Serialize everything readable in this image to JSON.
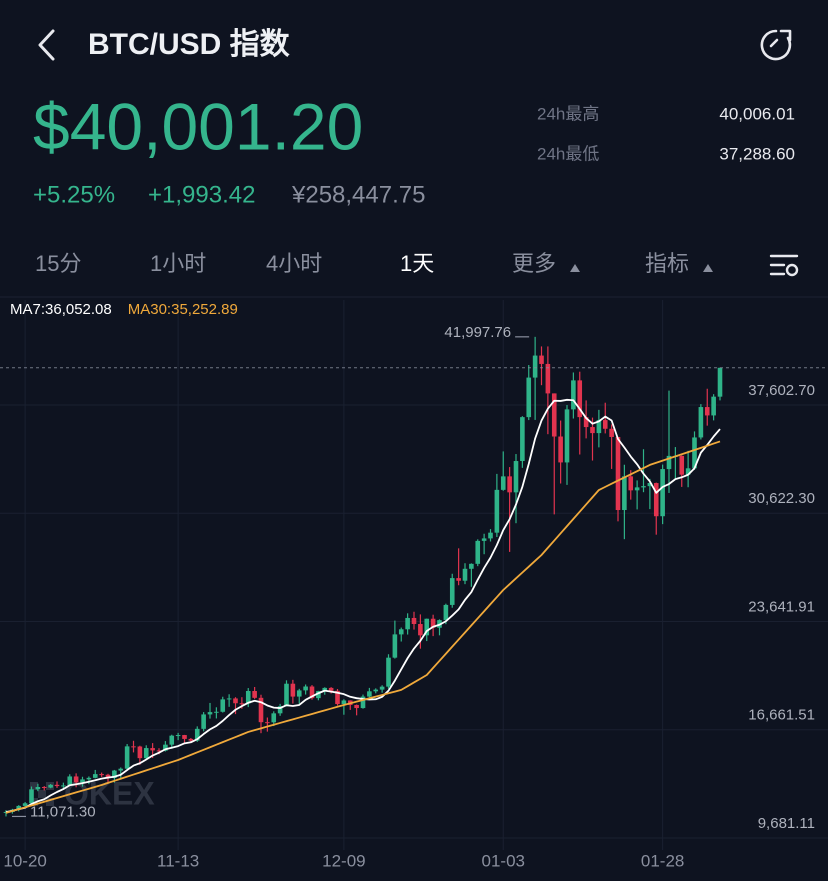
{
  "header": {
    "title": "BTC/USD 指数"
  },
  "ticker": {
    "price": "$40,001.20",
    "change_pct": "+5.25%",
    "change": "+1,993.42",
    "cny": "¥258,447.75",
    "high_label": "24h最高",
    "high": "40,006.01",
    "low_label": "24h最低",
    "low": "37,288.60"
  },
  "tabs": [
    "15分",
    "1小时",
    "4小时",
    "1天",
    "更多",
    "指标"
  ],
  "chart_data": {
    "type": "candlestick",
    "watermark": "OKEX",
    "up_color": "#2fb489",
    "down_color": "#e2344f",
    "grid": true,
    "current_price_line": true,
    "ylim": [
      8907,
      44373
    ],
    "yticks": [
      {
        "value": 9681.11,
        "label": "9,681.11"
      },
      {
        "value": 16661.51,
        "label": "16,661.51"
      },
      {
        "value": 23641.91,
        "label": "23,641.91"
      },
      {
        "value": 30622.3,
        "label": "30,622.30"
      },
      {
        "value": 37602.7,
        "label": "37,602.70"
      }
    ],
    "annotations": [
      {
        "value": 41997.76,
        "label": "41,997.76"
      },
      {
        "value": 11071.3,
        "label": "11,071.30"
      }
    ],
    "categories": [
      null,
      null,
      null,
      "10-20",
      null,
      null,
      null,
      null,
      null,
      null,
      null,
      null,
      null,
      null,
      null,
      null,
      null,
      null,
      null,
      null,
      null,
      null,
      null,
      null,
      null,
      null,
      null,
      "11-13",
      null,
      null,
      null,
      null,
      null,
      null,
      null,
      null,
      null,
      null,
      null,
      null,
      null,
      null,
      null,
      null,
      null,
      null,
      null,
      null,
      null,
      null,
      null,
      null,
      null,
      "12-09",
      null,
      null,
      null,
      null,
      null,
      null,
      null,
      null,
      null,
      null,
      null,
      null,
      null,
      null,
      null,
      null,
      null,
      null,
      null,
      null,
      null,
      null,
      null,
      null,
      "01-03",
      null,
      null,
      null,
      null,
      null,
      null,
      null,
      null,
      null,
      null,
      null,
      null,
      null,
      null,
      null,
      null,
      null,
      null,
      null,
      null,
      null,
      null,
      null,
      null,
      "01-28",
      null,
      null,
      null,
      null,
      null,
      null,
      null,
      null,
      null
    ],
    "ohlc": [
      [
        11300,
        11480,
        11071.3,
        11360
      ],
      [
        11360,
        11560,
        11250,
        11500
      ],
      [
        11500,
        11800,
        11400,
        11750
      ],
      [
        11750,
        12000,
        11680,
        11920
      ],
      [
        11920,
        13000,
        11880,
        12820
      ],
      [
        12820,
        13180,
        12700,
        12970
      ],
      [
        12970,
        13030,
        12750,
        12930
      ],
      [
        12930,
        13160,
        12890,
        13110
      ],
      [
        13110,
        13330,
        12910,
        13030
      ],
      [
        13030,
        13250,
        12800,
        13070
      ],
      [
        13070,
        13790,
        13060,
        13650
      ],
      [
        13650,
        13850,
        12950,
        13270
      ],
      [
        13270,
        13630,
        12990,
        13460
      ],
      [
        13460,
        13650,
        13150,
        13560
      ],
      [
        13560,
        14070,
        13530,
        13800
      ],
      [
        13800,
        13900,
        13620,
        13760
      ],
      [
        13760,
        13820,
        13290,
        13550
      ],
      [
        13550,
        14070,
        13250,
        14030
      ],
      [
        14030,
        14230,
        13530,
        14150
      ],
      [
        14150,
        15740,
        14100,
        15590
      ],
      [
        15590,
        15950,
        15200,
        15580
      ],
      [
        15580,
        15630,
        14400,
        14830
      ],
      [
        14830,
        15660,
        14720,
        15480
      ],
      [
        15480,
        15800,
        14840,
        15330
      ],
      [
        15330,
        15470,
        15080,
        15310
      ],
      [
        15310,
        15930,
        15260,
        15700
      ],
      [
        15700,
        16340,
        15440,
        16280
      ],
      [
        16280,
        16460,
        15990,
        16320
      ],
      [
        16320,
        16330,
        15770,
        16070
      ],
      [
        16070,
        16130,
        15850,
        15960
      ],
      [
        15960,
        16880,
        15880,
        16720
      ],
      [
        16720,
        17800,
        16560,
        17650
      ],
      [
        17650,
        18390,
        17380,
        17800
      ],
      [
        17800,
        18110,
        17390,
        17820
      ],
      [
        17820,
        18790,
        17770,
        18620
      ],
      [
        18620,
        18950,
        18140,
        18680
      ],
      [
        18680,
        18760,
        17670,
        18370
      ],
      [
        18370,
        18760,
        18020,
        18360
      ],
      [
        18360,
        19350,
        18120,
        19160
      ],
      [
        19160,
        19420,
        18650,
        18720
      ],
      [
        18720,
        18920,
        16440,
        17150
      ],
      [
        17150,
        17450,
        16540,
        17140
      ],
      [
        17140,
        17850,
        16900,
        17720
      ],
      [
        17720,
        18330,
        17560,
        18180
      ],
      [
        18180,
        19850,
        18180,
        19630
      ],
      [
        19630,
        19880,
        18350,
        18800
      ],
      [
        18800,
        19300,
        18340,
        19200
      ],
      [
        19200,
        19580,
        18930,
        19450
      ],
      [
        19450,
        19540,
        18600,
        18700
      ],
      [
        18700,
        19170,
        18560,
        19150
      ],
      [
        19150,
        19400,
        18920,
        19360
      ],
      [
        19360,
        19410,
        19000,
        19170
      ],
      [
        19170,
        19290,
        18220,
        18320
      ],
      [
        18320,
        18630,
        17630,
        18550
      ],
      [
        18550,
        18560,
        17940,
        18260
      ],
      [
        18260,
        18290,
        17590,
        18060
      ],
      [
        18060,
        18930,
        18020,
        18800
      ],
      [
        18800,
        19360,
        18750,
        19140
      ],
      [
        19140,
        19330,
        19010,
        19250
      ],
      [
        19250,
        19530,
        19050,
        19440
      ],
      [
        19440,
        21530,
        19300,
        21310
      ],
      [
        21310,
        23700,
        21250,
        22810
      ],
      [
        22810,
        23250,
        22350,
        23140
      ],
      [
        23140,
        24170,
        22800,
        23870
      ],
      [
        23870,
        24270,
        23120,
        23480
      ],
      [
        23480,
        24100,
        21890,
        22750
      ],
      [
        22750,
        23830,
        22380,
        23820
      ],
      [
        23820,
        24080,
        22700,
        23240
      ],
      [
        23240,
        23780,
        22750,
        23730
      ],
      [
        23730,
        24790,
        23470,
        24710
      ],
      [
        24710,
        26720,
        24530,
        26440
      ],
      [
        26440,
        28360,
        25980,
        26270
      ],
      [
        26270,
        27400,
        26050,
        27040
      ],
      [
        27040,
        27390,
        25880,
        27360
      ],
      [
        27360,
        28940,
        27210,
        28840
      ],
      [
        28840,
        29300,
        27980,
        29000
      ],
      [
        29000,
        29600,
        28800,
        29370
      ],
      [
        29370,
        33160,
        29090,
        32130
      ],
      [
        32130,
        34610,
        32070,
        33000
      ],
      [
        33000,
        33600,
        28130,
        31970
      ],
      [
        31970,
        34440,
        29980,
        33990
      ],
      [
        33990,
        36880,
        33550,
        36820
      ],
      [
        36820,
        40180,
        36630,
        39370
      ],
      [
        39370,
        41997.76,
        36640,
        40790
      ],
      [
        40790,
        41380,
        38880,
        40250
      ],
      [
        40250,
        41380,
        35720,
        38350
      ],
      [
        38350,
        38350,
        30550,
        35570
      ],
      [
        35570,
        36600,
        32540,
        33900
      ],
      [
        33900,
        37600,
        32450,
        37320
      ],
      [
        37320,
        39700,
        36730,
        39190
      ],
      [
        39190,
        39750,
        34410,
        36820
      ],
      [
        36820,
        37900,
        35450,
        36180
      ],
      [
        36180,
        36790,
        34020,
        35790
      ],
      [
        35790,
        37290,
        34870,
        36630
      ],
      [
        36630,
        37750,
        35770,
        36070
      ],
      [
        36070,
        36350,
        33480,
        35540
      ],
      [
        35540,
        35550,
        30100,
        30830
      ],
      [
        30830,
        33750,
        28950,
        33000
      ],
      [
        33000,
        33400,
        31500,
        32100
      ],
      [
        32100,
        32740,
        30870,
        32290
      ],
      [
        32290,
        34750,
        31980,
        32370
      ],
      [
        32370,
        32840,
        30890,
        32570
      ],
      [
        32570,
        32600,
        29240,
        30430
      ],
      [
        30430,
        33760,
        29920,
        33470
      ],
      [
        33470,
        38530,
        31930,
        34320
      ],
      [
        34320,
        34890,
        32860,
        34320
      ],
      [
        34320,
        34350,
        32320,
        33110
      ],
      [
        33110,
        34650,
        32300,
        33520
      ],
      [
        33520,
        35900,
        33420,
        35510
      ],
      [
        35510,
        37660,
        35380,
        37470
      ],
      [
        37470,
        38650,
        36270,
        36930
      ],
      [
        36930,
        38300,
        36610,
        38140
      ],
      [
        38140,
        40006.01,
        37900,
        40001.2
      ]
    ],
    "series": [
      {
        "name": "MA7:36,052.08",
        "color": "#ffffff",
        "values": [
          11360,
          11430,
          11540,
          11630,
          11870,
          12050,
          12180,
          12429,
          12647,
          12836,
          13083,
          13147,
          13217,
          13307,
          13406,
          13510,
          13579,
          13633,
          13759,
          14063,
          14351,
          14499,
          14744,
          14999,
          15181,
          15403,
          15501,
          15607,
          15784,
          15853,
          16051,
          16386,
          16686,
          16906,
          17234,
          17607,
          17951,
          18186,
          18401,
          18533,
          18437,
          18226,
          18089,
          18061,
          18243,
          18191,
          18260,
          18589,
          18811,
          19016,
          19184,
          19119,
          19050,
          18957,
          18787,
          18696,
          18646,
          18614,
          18626,
          18786,
          19180,
          19830,
          20556,
          21280,
          21900,
          22400,
          23026,
          23301,
          23433,
          23657,
          24024,
          24423,
          25036,
          25541,
          26341,
          27094,
          27760,
          28573,
          29534,
          30239,
          31186,
          32326,
          33807,
          35439,
          36599,
          37363,
          37877,
          37864,
          37936,
          37910,
          37343,
          36761,
          36396,
          36547,
          36857,
          36603,
          35409,
          34863,
          34280,
          33780,
          33171,
          32671,
          31941,
          32319,
          32507,
          32824,
          32941,
          33106,
          33526,
          34531,
          35026,
          35571,
          36052.08
        ]
      },
      {
        "name": "MA30:35,252.89",
        "color": "#f0a93b",
        "values": [
          11300,
          11420,
          11540,
          11660,
          11780,
          11900,
          12020,
          12140,
          12260,
          12380,
          12500,
          12620,
          12740,
          12860,
          12980,
          13100,
          13234,
          13368,
          13503,
          13637,
          13771,
          13905,
          14040,
          14174,
          14308,
          14442,
          14577,
          14711,
          14875,
          15040,
          15204,
          15369,
          15533,
          15697,
          15862,
          16026,
          16191,
          16355,
          16520,
          16636,
          16752,
          16868,
          16984,
          17100,
          17216,
          17332,
          17447,
          17563,
          17679,
          17795,
          17911,
          18027,
          18142,
          18258,
          18366,
          18474,
          18582,
          18690,
          18798,
          18906,
          19014,
          19122,
          19230,
          19471,
          19712,
          19952,
          20193,
          20650,
          21107,
          21564,
          22020,
          22477,
          22934,
          23391,
          23847,
          24304,
          24761,
          25217,
          25674,
          26050,
          26426,
          26802,
          27178,
          27554,
          27930,
          28396,
          28861,
          29327,
          29793,
          30258,
          30724,
          31189,
          31655,
          32120,
          32323,
          32525,
          32728,
          32930,
          33133,
          33335,
          33538,
          33740,
          33877,
          34015,
          34152,
          34290,
          34427,
          34565,
          34702,
          34840,
          34977,
          35115,
          35252.89
        ]
      }
    ]
  }
}
